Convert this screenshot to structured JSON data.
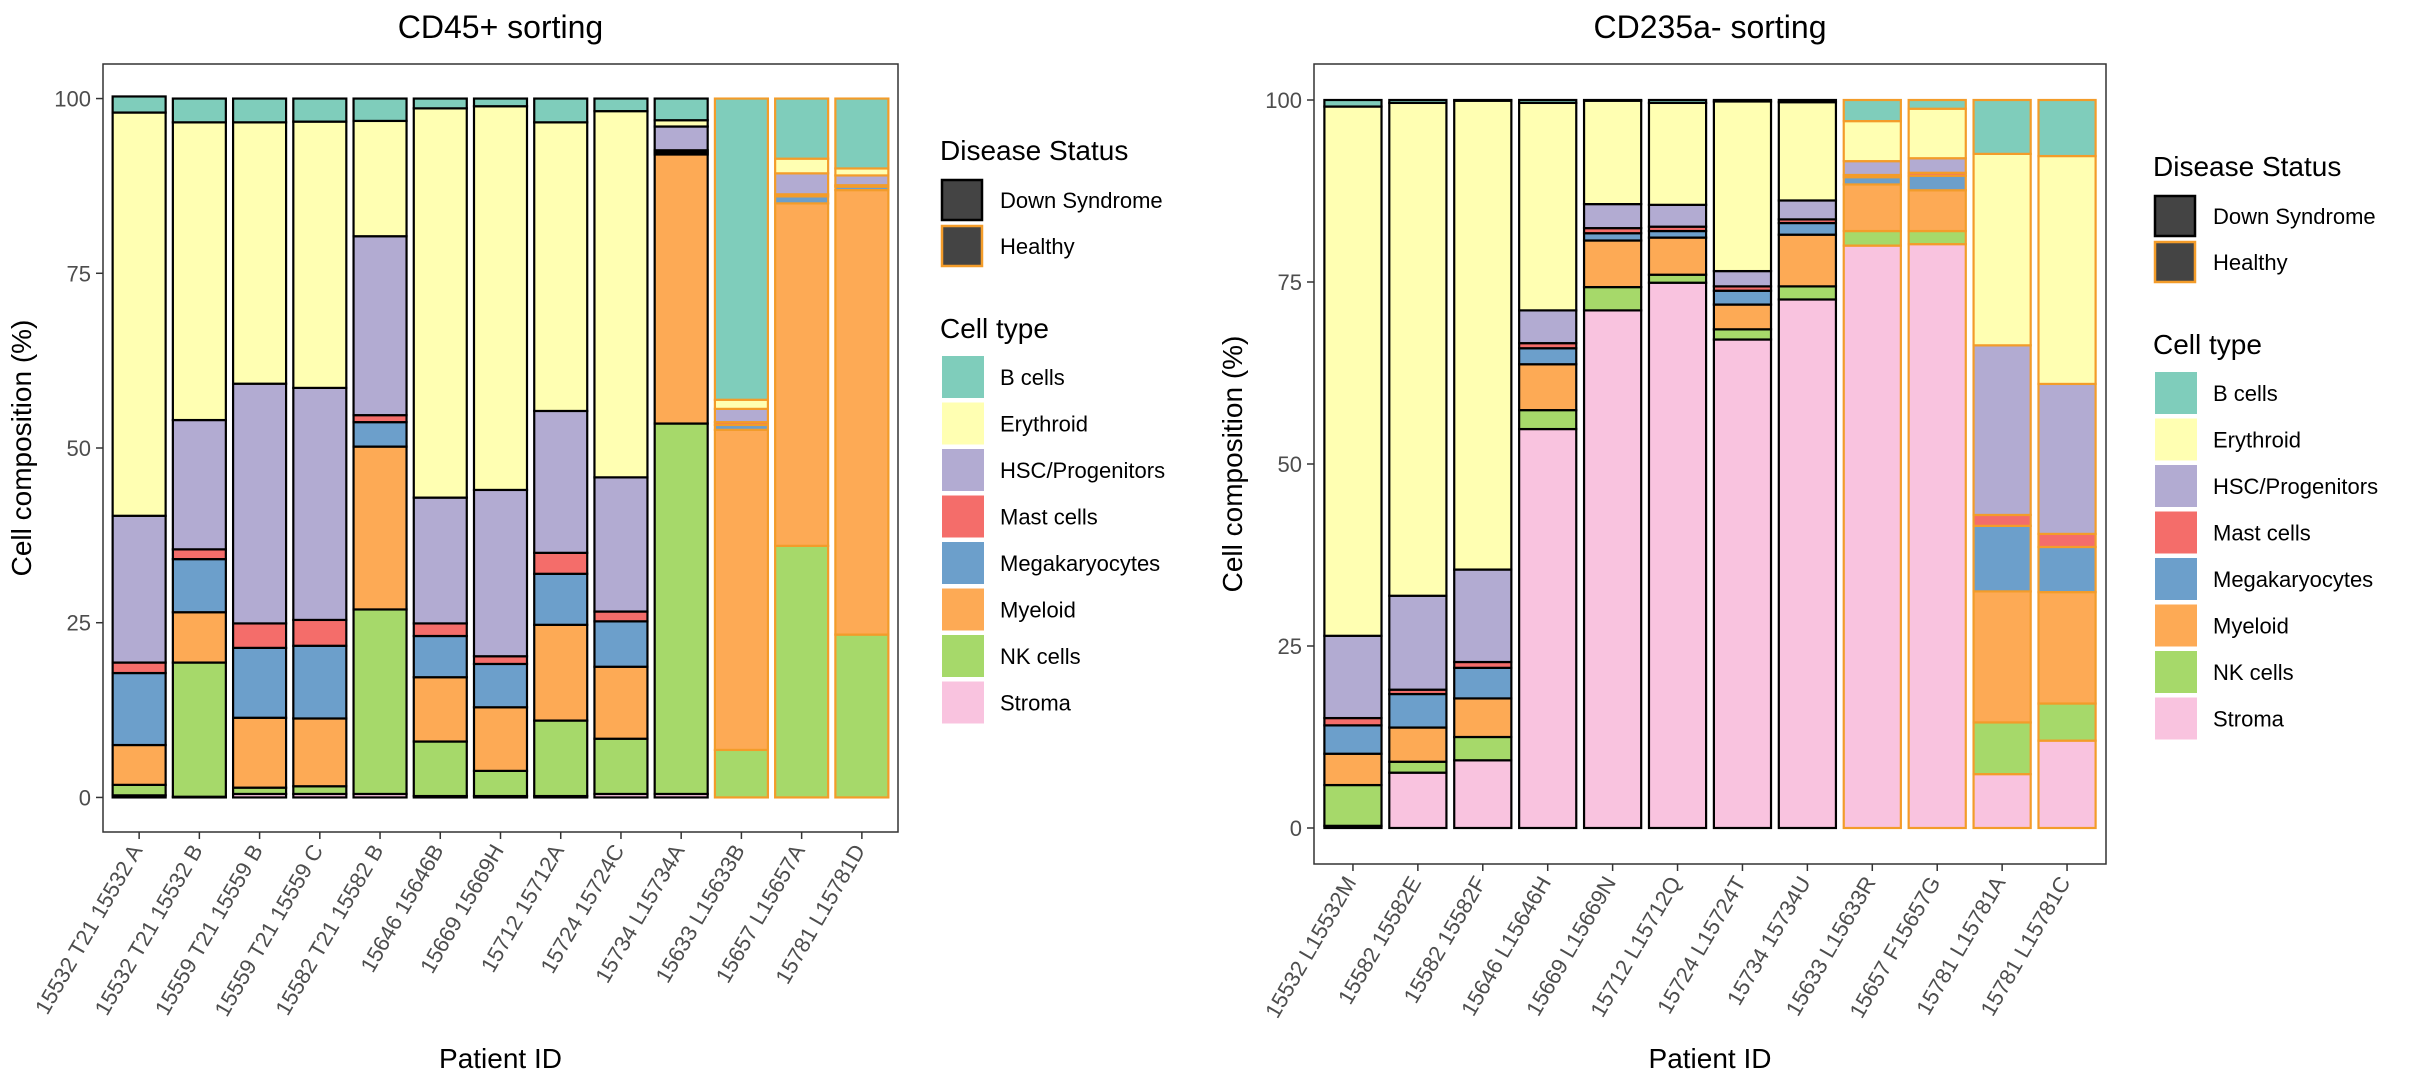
{
  "colors": {
    "B cells": "#7fcdbb",
    "Erythroid": "#ffffb2",
    "HSC/Progenitors": "#b2abd2",
    "Mast cells": "#f46d6a",
    "Megakaryocytes": "#6c9fcb",
    "Myeloid": "#fdaa55",
    "NK cells": "#a6d96a",
    "Stroma": "#f9c3df",
    "Down Syndrome": "#000000",
    "Healthy": "#f39c2a"
  },
  "legend": {
    "disease_title": "Disease Status",
    "disease_items": [
      "Down Syndrome",
      "Healthy"
    ],
    "cell_title": "Cell type",
    "cell_items": [
      "B cells",
      "Erythroid",
      "HSC/Progenitors",
      "Mast cells",
      "Megakaryocytes",
      "Myeloid",
      "NK cells",
      "Stroma"
    ]
  },
  "chart_data": [
    {
      "type": "bar",
      "stacked": true,
      "title": "CD45+ sorting",
      "xlabel": "Patient ID",
      "ylabel": "Cell composition (%)",
      "ylim": [
        0,
        100
      ],
      "yticks": [
        0,
        25,
        50,
        75,
        100
      ],
      "grid": false,
      "legend_position": "right",
      "categories": [
        "15532 T21 15532 A",
        "15532 T21 15532 B",
        "15559 T21 15559 B",
        "15559 T21 15559 C",
        "15582 T21 15582 B",
        "15646 15646B",
        "15669 15669H",
        "15712 15712A",
        "15724 15724C",
        "15734 L15734A",
        "15633 L15633B",
        "15657 L15657A",
        "15781 L15781D"
      ],
      "disease_status": [
        "Down Syndrome",
        "Down Syndrome",
        "Down Syndrome",
        "Down Syndrome",
        "Down Syndrome",
        "Down Syndrome",
        "Down Syndrome",
        "Down Syndrome",
        "Down Syndrome",
        "Down Syndrome",
        "Healthy",
        "Healthy",
        "Healthy"
      ],
      "series": [
        {
          "name": "Stroma",
          "values": [
            0.3,
            0.1,
            0.5,
            0.5,
            0.5,
            0.2,
            0.2,
            0.2,
            0.5,
            0.5,
            0,
            0,
            0
          ]
        },
        {
          "name": "NK cells",
          "values": [
            1.5,
            19.2,
            0.9,
            1.1,
            26.4,
            7.8,
            3.6,
            10.8,
            7.9,
            53.0,
            6.8,
            36.0,
            23.3
          ]
        },
        {
          "name": "Myeloid",
          "values": [
            5.7,
            7.2,
            10.0,
            9.7,
            23.3,
            9.2,
            9.1,
            13.7,
            10.3,
            38.5,
            45.8,
            49.0,
            63.6
          ]
        },
        {
          "name": "Megakaryocytes",
          "values": [
            10.3,
            7.6,
            10.0,
            10.4,
            3.5,
            5.9,
            6.2,
            7.3,
            6.5,
            0.3,
            0.7,
            1.0,
            0.5
          ]
        },
        {
          "name": "Mast cells",
          "values": [
            1.5,
            1.4,
            3.5,
            3.7,
            1.0,
            1.8,
            1.1,
            3.0,
            1.4,
            0.3,
            0.4,
            0.3,
            0.2
          ]
        },
        {
          "name": "HSC/Progenitors",
          "values": [
            21.0,
            18.5,
            34.3,
            33.2,
            25.6,
            18.0,
            23.8,
            20.3,
            19.2,
            3.4,
            1.9,
            3.0,
            1.4
          ]
        },
        {
          "name": "Erythroid",
          "values": [
            57.7,
            42.6,
            37.4,
            38.1,
            16.5,
            55.7,
            54.9,
            41.3,
            52.4,
            0.9,
            1.3,
            2.1,
            1.0
          ]
        },
        {
          "name": "B cells",
          "values": [
            2.3,
            3.4,
            3.4,
            3.3,
            3.2,
            1.4,
            1.1,
            3.4,
            1.8,
            3.1,
            43.1,
            8.6,
            10.0
          ]
        }
      ]
    },
    {
      "type": "bar",
      "stacked": true,
      "title": "CD235a- sorting",
      "xlabel": "Patient ID",
      "ylabel": "Cell composition (%)",
      "ylim": [
        0,
        100
      ],
      "yticks": [
        0,
        25,
        50,
        75,
        100
      ],
      "grid": false,
      "legend_position": "right",
      "categories": [
        "15532 L15532M",
        "15582 15582E",
        "15582 15582F",
        "15646 L15646H",
        "15669 L15669N",
        "15712 L15712Q",
        "15724 L15724T",
        "15734 15734U",
        "15633 L15633R",
        "15657 F15657G",
        "15781 L15781A",
        "15781 L15781C"
      ],
      "disease_status": [
        "Down Syndrome",
        "Down Syndrome",
        "Down Syndrome",
        "Down Syndrome",
        "Down Syndrome",
        "Down Syndrome",
        "Down Syndrome",
        "Down Syndrome",
        "Healthy",
        "Healthy",
        "Healthy",
        "Healthy"
      ],
      "series": [
        {
          "name": "Stroma",
          "values": [
            0.3,
            7.6,
            9.3,
            54.8,
            71.1,
            74.9,
            67.1,
            72.6,
            80.0,
            80.2,
            7.4,
            12.0
          ]
        },
        {
          "name": "NK cells",
          "values": [
            5.6,
            1.5,
            3.2,
            2.6,
            3.2,
            1.1,
            1.4,
            1.8,
            2.0,
            1.8,
            7.1,
            5.1
          ]
        },
        {
          "name": "Myeloid",
          "values": [
            4.3,
            4.7,
            5.3,
            6.3,
            6.4,
            5.1,
            3.4,
            7.1,
            6.4,
            5.6,
            18.0,
            15.3
          ]
        },
        {
          "name": "Megakaryocytes",
          "values": [
            3.9,
            4.6,
            4.2,
            2.2,
            1.0,
            0.9,
            1.9,
            1.6,
            1.0,
            2.0,
            9.0,
            6.2
          ]
        },
        {
          "name": "Mast cells",
          "values": [
            1.0,
            0.6,
            0.8,
            0.7,
            0.7,
            0.6,
            0.6,
            0.5,
            0.3,
            0.4,
            1.5,
            1.8
          ]
        },
        {
          "name": "HSC/Progenitors",
          "values": [
            11.3,
            12.9,
            12.7,
            4.5,
            3.3,
            3.0,
            2.1,
            2.6,
            1.9,
            2.0,
            23.3,
            20.6
          ]
        },
        {
          "name": "Erythroid",
          "values": [
            72.7,
            67.7,
            64.4,
            28.5,
            14.2,
            14.0,
            23.3,
            13.5,
            5.5,
            6.8,
            26.3,
            31.3
          ]
        },
        {
          "name": "B cells",
          "values": [
            0.9,
            0.4,
            0.1,
            0.4,
            0.1,
            0.4,
            0.2,
            0.3,
            2.9,
            1.2,
            7.4,
            7.7
          ]
        }
      ]
    }
  ]
}
